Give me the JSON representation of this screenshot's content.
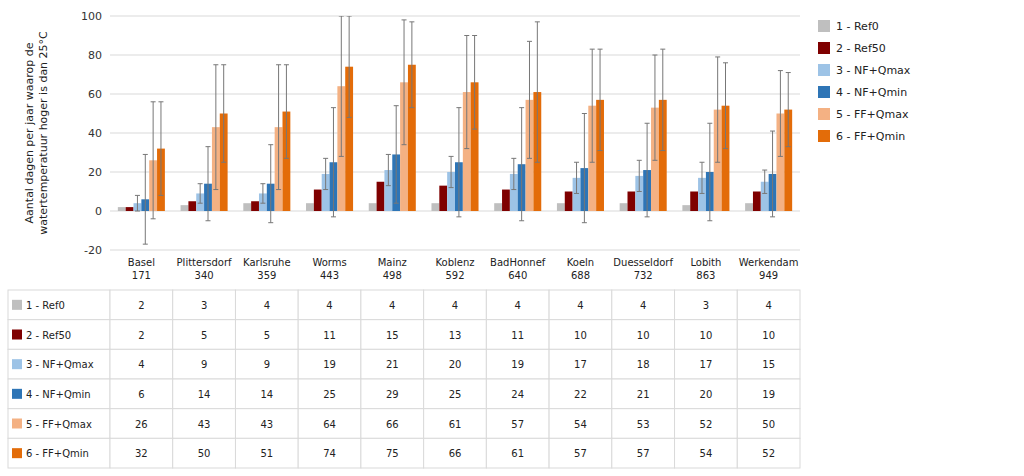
{
  "chart_data": {
    "type": "bar",
    "y_label": "Aantal dagen per jaar waarop de\nwatertemperatuur hoger is dan 25°C",
    "categories": [
      "Basel\n171",
      "Plittersdorf\n340",
      "Karlsruhe\n359",
      "Worms\n443",
      "Mainz\n498",
      "Koblenz\n592",
      "BadHonnef\n640",
      "Koeln\n688",
      "Duesseldorf\n732",
      "Lobith\n863",
      "Werkendam\n949"
    ],
    "series": [
      {
        "name": "1 - Ref0",
        "color": "#bfbfbf",
        "values": [
          2,
          3,
          4,
          4,
          4,
          4,
          4,
          4,
          4,
          3,
          4
        ]
      },
      {
        "name": "2 - Ref50",
        "color": "#7f0000",
        "values": [
          2,
          5,
          5,
          11,
          15,
          13,
          11,
          10,
          10,
          10,
          10
        ]
      },
      {
        "name": "3 - NF+Qmax",
        "color": "#9dc3e6",
        "values": [
          4,
          9,
          9,
          19,
          21,
          20,
          19,
          17,
          18,
          17,
          15
        ],
        "errors": [
          4,
          5,
          5,
          8,
          8,
          8,
          8,
          8,
          8,
          8,
          6
        ]
      },
      {
        "name": "4 - NF+Qmin",
        "color": "#2e75b6",
        "values": [
          6,
          14,
          14,
          25,
          29,
          25,
          24,
          22,
          21,
          20,
          19
        ],
        "errors": [
          23,
          19,
          20,
          28,
          25,
          28,
          29,
          28,
          24,
          25,
          22
        ]
      },
      {
        "name": "5 - FF+Qmax",
        "color": "#f4b183",
        "values": [
          26,
          43,
          43,
          64,
          66,
          61,
          57,
          54,
          53,
          52,
          50
        ],
        "errors": [
          30,
          32,
          32,
          36,
          32,
          29,
          30,
          29,
          27,
          27,
          22
        ]
      },
      {
        "name": "6 - FF+Qmin",
        "color": "#e36c09",
        "values": [
          32,
          50,
          51,
          74,
          75,
          66,
          61,
          57,
          57,
          54,
          52
        ],
        "errors": [
          24,
          25,
          24,
          26,
          22,
          24,
          36,
          26,
          26,
          22,
          19
        ]
      }
    ],
    "ylim": [
      -20,
      100
    ],
    "yticks": [
      -20,
      0,
      20,
      40,
      60,
      80,
      100
    ],
    "grid": true,
    "legend": "right"
  }
}
